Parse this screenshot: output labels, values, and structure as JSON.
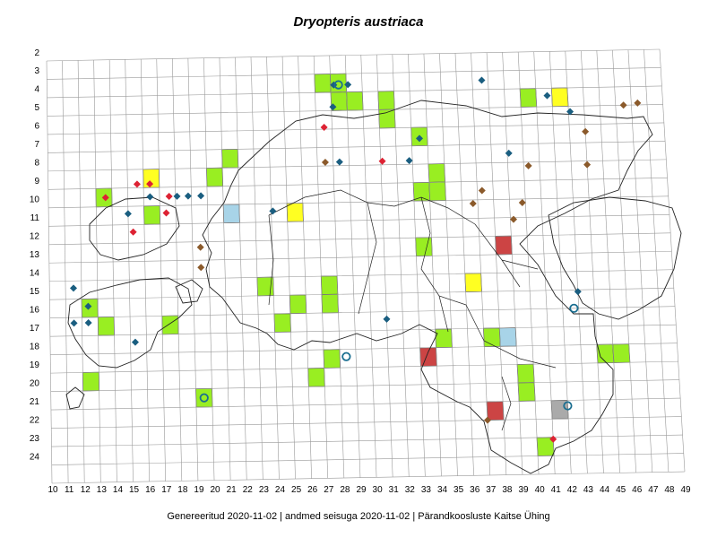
{
  "title": "Dryopteris austriaca",
  "footer": "Genereeritud 2020-11-02  |  andmed seisuga 2020-11-02  |  Pärandkoosluste Kaitse Ühing",
  "colors": {
    "green": "#99ee22",
    "yellow": "#ffff22",
    "red": "#cc4444",
    "blue": "#a8d4e8",
    "grey": "#aaaaaa",
    "diamond_blue": "#1a5e80",
    "diamond_red": "#dd2233",
    "diamond_brown": "#8b5a2b",
    "circle": "#1a6e90"
  },
  "grid": {
    "col_labels": [
      "10",
      "11",
      "12",
      "13",
      "14",
      "15",
      "16",
      "17",
      "18",
      "19",
      "20",
      "21",
      "22",
      "23",
      "24",
      "25",
      "26",
      "27",
      "28",
      "29",
      "30",
      "31",
      "32",
      "33",
      "34",
      "35",
      "36",
      "37",
      "38",
      "39",
      "40",
      "41",
      "42",
      "43",
      "44",
      "45",
      "46",
      "47",
      "48",
      "49"
    ],
    "row_labels": [
      "2",
      "3",
      "4",
      "5",
      "6",
      "7",
      "8",
      "9",
      "10",
      "11",
      "12",
      "13",
      "14",
      "15",
      "16",
      "17",
      "18",
      "19",
      "20",
      "21",
      "22",
      "23",
      "24"
    ]
  },
  "squares": [
    {
      "col": 27,
      "row": 4,
      "color": "green"
    },
    {
      "col": 28,
      "row": 4,
      "color": "green"
    },
    {
      "col": 28,
      "row": 5,
      "color": "green"
    },
    {
      "col": 29,
      "row": 5,
      "color": "green"
    },
    {
      "col": 31,
      "row": 5,
      "color": "green"
    },
    {
      "col": 31,
      "row": 6,
      "color": "green"
    },
    {
      "col": 40,
      "row": 5,
      "color": "green"
    },
    {
      "col": 42,
      "row": 5,
      "color": "yellow"
    },
    {
      "col": 33,
      "row": 7,
      "color": "green"
    },
    {
      "col": 21,
      "row": 8,
      "color": "green"
    },
    {
      "col": 20,
      "row": 9,
      "color": "green"
    },
    {
      "col": 16,
      "row": 9,
      "color": "yellow"
    },
    {
      "col": 34,
      "row": 9,
      "color": "green"
    },
    {
      "col": 13,
      "row": 10,
      "color": "green"
    },
    {
      "col": 33,
      "row": 10,
      "color": "green"
    },
    {
      "col": 34,
      "row": 10,
      "color": "green"
    },
    {
      "col": 16,
      "row": 11,
      "color": "green"
    },
    {
      "col": 21,
      "row": 11,
      "color": "blue"
    },
    {
      "col": 25,
      "row": 11,
      "color": "yellow"
    },
    {
      "col": 38,
      "row": 13,
      "color": "red"
    },
    {
      "col": 33,
      "row": 13,
      "color": "green"
    },
    {
      "col": 36,
      "row": 15,
      "color": "yellow"
    },
    {
      "col": 23,
      "row": 15,
      "color": "green"
    },
    {
      "col": 27,
      "row": 15,
      "color": "green"
    },
    {
      "col": 12,
      "row": 16,
      "color": "green"
    },
    {
      "col": 25,
      "row": 16,
      "color": "green"
    },
    {
      "col": 27,
      "row": 16,
      "color": "green"
    },
    {
      "col": 13,
      "row": 17,
      "color": "green"
    },
    {
      "col": 17,
      "row": 17,
      "color": "green"
    },
    {
      "col": 24,
      "row": 17,
      "color": "green"
    },
    {
      "col": 34,
      "row": 18,
      "color": "green"
    },
    {
      "col": 37,
      "row": 18,
      "color": "green"
    },
    {
      "col": 38,
      "row": 18,
      "color": "blue"
    },
    {
      "col": 33,
      "row": 19,
      "color": "red"
    },
    {
      "col": 27,
      "row": 19,
      "color": "green"
    },
    {
      "col": 44,
      "row": 19,
      "color": "green"
    },
    {
      "col": 45,
      "row": 19,
      "color": "green"
    },
    {
      "col": 12,
      "row": 20,
      "color": "green"
    },
    {
      "col": 26,
      "row": 20,
      "color": "green"
    },
    {
      "col": 39,
      "row": 20,
      "color": "green"
    },
    {
      "col": 39,
      "row": 21,
      "color": "green"
    },
    {
      "col": 19,
      "row": 21,
      "color": "green"
    },
    {
      "col": 37,
      "row": 22,
      "color": "red"
    },
    {
      "col": 41,
      "row": 22,
      "color": "grey"
    },
    {
      "col": 40,
      "row": 24,
      "color": "green"
    }
  ],
  "diamonds": [
    {
      "col": 27.7,
      "row": 4.1,
      "color": "diamond_blue"
    },
    {
      "col": 28.6,
      "row": 4.1,
      "color": "diamond_blue"
    },
    {
      "col": 27.6,
      "row": 5.3,
      "color": "diamond_blue"
    },
    {
      "col": 37.1,
      "row": 4.0,
      "color": "diamond_blue"
    },
    {
      "col": 41.2,
      "row": 4.9,
      "color": "diamond_blue"
    },
    {
      "col": 42.6,
      "row": 5.8,
      "color": "diamond_blue"
    },
    {
      "col": 46.0,
      "row": 5.5,
      "color": "diamond_brown"
    },
    {
      "col": 46.9,
      "row": 5.4,
      "color": "diamond_brown"
    },
    {
      "col": 27.0,
      "row": 6.4,
      "color": "diamond_red"
    },
    {
      "col": 43.5,
      "row": 6.9,
      "color": "diamond_brown"
    },
    {
      "col": 33.0,
      "row": 7.1,
      "color": "diamond_blue"
    },
    {
      "col": 38.6,
      "row": 8.0,
      "color": "diamond_blue"
    },
    {
      "col": 27.0,
      "row": 8.3,
      "color": "diamond_brown"
    },
    {
      "col": 27.9,
      "row": 8.3,
      "color": "diamond_blue"
    },
    {
      "col": 30.6,
      "row": 8.3,
      "color": "diamond_red"
    },
    {
      "col": 32.3,
      "row": 8.3,
      "color": "diamond_blue"
    },
    {
      "col": 39.8,
      "row": 8.7,
      "color": "diamond_brown"
    },
    {
      "col": 43.5,
      "row": 8.7,
      "color": "diamond_brown"
    },
    {
      "col": 15.1,
      "row": 9.3,
      "color": "diamond_red"
    },
    {
      "col": 15.9,
      "row": 9.3,
      "color": "diamond_red"
    },
    {
      "col": 13.1,
      "row": 10.0,
      "color": "diamond_red"
    },
    {
      "col": 15.9,
      "row": 10.0,
      "color": "diamond_blue"
    },
    {
      "col": 17.1,
      "row": 10.0,
      "color": "diamond_red"
    },
    {
      "col": 17.6,
      "row": 10.0,
      "color": "diamond_blue"
    },
    {
      "col": 18.3,
      "row": 10.0,
      "color": "diamond_blue"
    },
    {
      "col": 19.1,
      "row": 10.0,
      "color": "diamond_blue"
    },
    {
      "col": 36.8,
      "row": 10.0,
      "color": "diamond_brown"
    },
    {
      "col": 14.5,
      "row": 10.9,
      "color": "diamond_blue"
    },
    {
      "col": 16.9,
      "row": 10.9,
      "color": "diamond_red"
    },
    {
      "col": 23.6,
      "row": 10.9,
      "color": "diamond_blue"
    },
    {
      "col": 36.2,
      "row": 10.7,
      "color": "diamond_brown"
    },
    {
      "col": 39.3,
      "row": 10.7,
      "color": "diamond_brown"
    },
    {
      "col": 14.8,
      "row": 11.9,
      "color": "diamond_red"
    },
    {
      "col": 38.7,
      "row": 11.6,
      "color": "diamond_brown"
    },
    {
      "col": 19.0,
      "row": 12.8,
      "color": "diamond_brown"
    },
    {
      "col": 19.0,
      "row": 13.9,
      "color": "diamond_brown"
    },
    {
      "col": 11.0,
      "row": 14.9,
      "color": "diamond_blue"
    },
    {
      "col": 11.9,
      "row": 15.9,
      "color": "diamond_blue"
    },
    {
      "col": 11.0,
      "row": 16.8,
      "color": "diamond_blue"
    },
    {
      "col": 11.9,
      "row": 16.8,
      "color": "diamond_blue"
    },
    {
      "col": 42.5,
      "row": 15.6,
      "color": "diamond_blue"
    },
    {
      "col": 30.5,
      "row": 16.9,
      "color": "diamond_blue"
    },
    {
      "col": 14.8,
      "row": 17.9,
      "color": "diamond_blue"
    },
    {
      "col": 36.5,
      "row": 22.5,
      "color": "diamond_brown"
    },
    {
      "col": 40.5,
      "row": 23.6,
      "color": "diamond_red"
    }
  ],
  "circles": [
    {
      "col": 28.0,
      "row": 4.1
    },
    {
      "col": 42.2,
      "row": 16.5
    },
    {
      "col": 27.9,
      "row": 18.9
    },
    {
      "col": 19.0,
      "row": 21.0
    },
    {
      "col": 41.5,
      "row": 21.8
    }
  ]
}
